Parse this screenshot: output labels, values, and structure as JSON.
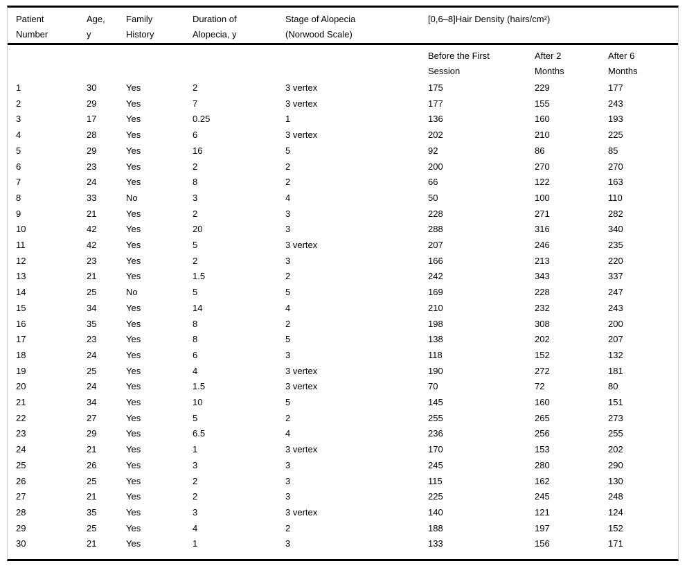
{
  "table": {
    "headers": [
      "Patient\nNumber",
      "Age,\ny",
      "Family\nHistory",
      "Duration of\nAlopecia, y",
      "Stage of Alopecia\n(Norwood Scale)",
      "[0,6–8]Hair Density (hairs/cm²)"
    ],
    "subheaders": [
      "Before the First\nSession",
      "After 2\nMonths",
      "After 6\nMonths"
    ],
    "rows": [
      [
        "1",
        "30",
        "Yes",
        "2",
        "3 vertex",
        "175",
        "229",
        "177"
      ],
      [
        "2",
        "29",
        "Yes",
        "7",
        "3 vertex",
        "177",
        "155",
        "243"
      ],
      [
        "3",
        "17",
        "Yes",
        "0.25",
        "1",
        "136",
        "160",
        "193"
      ],
      [
        "4",
        "28",
        "Yes",
        "6",
        "3 vertex",
        "202",
        "210",
        "225"
      ],
      [
        "5",
        "29",
        "Yes",
        "16",
        "5",
        "92",
        "86",
        "85"
      ],
      [
        "6",
        "23",
        "Yes",
        "2",
        "2",
        "200",
        "270",
        "270"
      ],
      [
        "7",
        "24",
        "Yes",
        "8",
        "2",
        "66",
        "122",
        "163"
      ],
      [
        "8",
        "33",
        "No",
        "3",
        "4",
        "50",
        "100",
        "110"
      ],
      [
        "9",
        "21",
        "Yes",
        "2",
        "3",
        "228",
        "271",
        "282"
      ],
      [
        "10",
        "42",
        "Yes",
        "20",
        "3",
        "288",
        "316",
        "340"
      ],
      [
        "11",
        "42",
        "Yes",
        "5",
        "3 vertex",
        "207",
        "246",
        "235"
      ],
      [
        "12",
        "23",
        "Yes",
        "2",
        "3",
        "166",
        "213",
        "220"
      ],
      [
        "13",
        "21",
        "Yes",
        "1.5",
        "2",
        "242",
        "343",
        "337"
      ],
      [
        "14",
        "25",
        "No",
        "5",
        "5",
        "169",
        "228",
        "247"
      ],
      [
        "15",
        "34",
        "Yes",
        "14",
        "4",
        "210",
        "232",
        "243"
      ],
      [
        "16",
        "35",
        "Yes",
        "8",
        "2",
        "198",
        "308",
        "200"
      ],
      [
        "17",
        "23",
        "Yes",
        "8",
        "5",
        "138",
        "202",
        "207"
      ],
      [
        "18",
        "24",
        "Yes",
        "6",
        "3",
        "118",
        "152",
        "132"
      ],
      [
        "19",
        "25",
        "Yes",
        "4",
        "3 vertex",
        "190",
        "272",
        "181"
      ],
      [
        "20",
        "24",
        "Yes",
        "1.5",
        "3 vertex",
        "70",
        "72",
        "80"
      ],
      [
        "21",
        "34",
        "Yes",
        "10",
        "5",
        "145",
        "160",
        "151"
      ],
      [
        "22",
        "27",
        "Yes",
        "5",
        "2",
        "255",
        "265",
        "273"
      ],
      [
        "23",
        "29",
        "Yes",
        "6.5",
        "4",
        "236",
        "256",
        "255"
      ],
      [
        "24",
        "21",
        "Yes",
        "1",
        "3 vertex",
        "170",
        "153",
        "202"
      ],
      [
        "25",
        "26",
        "Yes",
        "3",
        "3",
        "245",
        "280",
        "290"
      ],
      [
        "26",
        "25",
        "Yes",
        "2",
        "3",
        "115",
        "162",
        "130"
      ],
      [
        "27",
        "21",
        "Yes",
        "2",
        "3",
        "225",
        "245",
        "248"
      ],
      [
        "28",
        "35",
        "Yes",
        "3",
        "3 vertex",
        "140",
        "121",
        "124"
      ],
      [
        "29",
        "25",
        "Yes",
        "4",
        "2",
        "188",
        "197",
        "152"
      ],
      [
        "30",
        "21",
        "Yes",
        "1",
        "3",
        "133",
        "156",
        "171"
      ]
    ]
  },
  "colors": {
    "text": "#000000",
    "rule_heavy": "#000000",
    "rule_light": "#cccccc",
    "background": "#ffffff"
  }
}
